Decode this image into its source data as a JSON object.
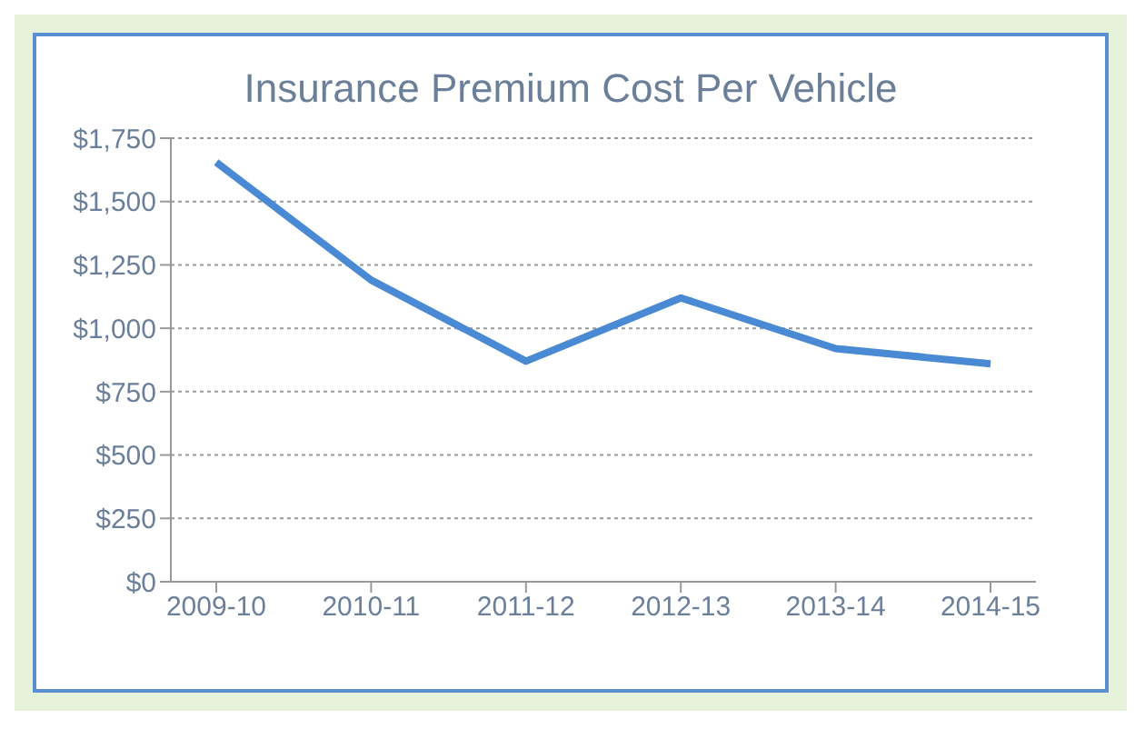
{
  "chart_data": {
    "type": "line",
    "title": "Insurance Premium Cost Per Vehicle",
    "categories": [
      "2009-10",
      "2010-11",
      "2011-12",
      "2012-13",
      "2013-14",
      "2014-15"
    ],
    "series": [
      {
        "color": "#4a8ad4",
        "values": [
          1655,
          1190,
          870,
          1120,
          920,
          860
        ]
      }
    ],
    "ylim": [
      0,
      1750
    ],
    "yticks": [
      {
        "value": 0,
        "label": "$0"
      },
      {
        "value": 250,
        "label": "$250"
      },
      {
        "value": 500,
        "label": "$500"
      },
      {
        "value": 750,
        "label": "$750"
      },
      {
        "value": 1000,
        "label": "$1,000"
      },
      {
        "value": 1250,
        "label": "$1,250"
      },
      {
        "value": 1500,
        "label": "$1,500"
      },
      {
        "value": 1750,
        "label": "$1,750"
      }
    ],
    "grid": "y",
    "legend": false,
    "marker": "none",
    "line_style": "solid"
  }
}
